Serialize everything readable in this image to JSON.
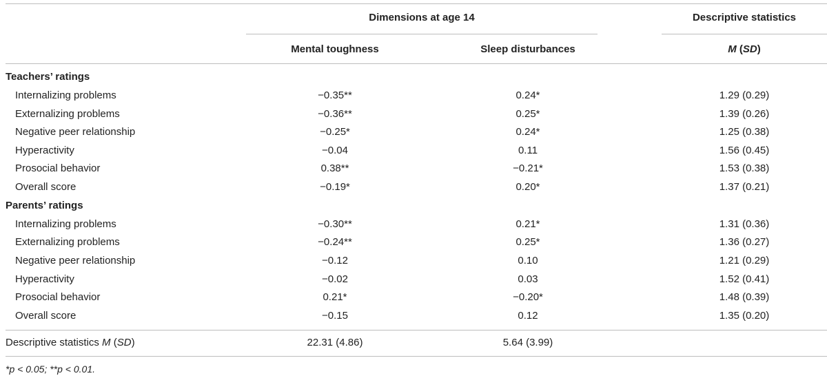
{
  "header": {
    "group_dimensions": "Dimensions at age 14",
    "group_descriptive": "Descriptive statistics",
    "col_mental": "Mental toughness",
    "col_sleep": "Sleep disturbances",
    "col_msd_m": "M",
    "col_msd_sd": "SD"
  },
  "sections": [
    {
      "title": "Teachers’ ratings",
      "rows": [
        {
          "label": "Internalizing problems",
          "mental": "−0.35**",
          "sleep": "0.24*",
          "desc": "1.29 (0.29)"
        },
        {
          "label": "Externalizing problems",
          "mental": "−0.36**",
          "sleep": "0.25*",
          "desc": "1.39 (0.26)"
        },
        {
          "label": "Negative peer relationship",
          "mental": "−0.25*",
          "sleep": "0.24*",
          "desc": "1.25 (0.38)"
        },
        {
          "label": "Hyperactivity",
          "mental": "−0.04",
          "sleep": "0.11",
          "desc": "1.56 (0.45)"
        },
        {
          "label": "Prosocial behavior",
          "mental": "0.38**",
          "sleep": "−0.21*",
          "desc": "1.53 (0.38)"
        },
        {
          "label": "Overall score",
          "mental": "−0.19*",
          "sleep": "0.20*",
          "desc": "1.37 (0.21)"
        }
      ]
    },
    {
      "title": "Parents’ ratings",
      "rows": [
        {
          "label": "Internalizing problems",
          "mental": "−0.30**",
          "sleep": "0.21*",
          "desc": "1.31 (0.36)"
        },
        {
          "label": "Externalizing problems",
          "mental": "−0.24**",
          "sleep": "0.25*",
          "desc": "1.36 (0.27)"
        },
        {
          "label": "Negative peer relationship",
          "mental": "−0.12",
          "sleep": "0.10",
          "desc": "1.21 (0.29)"
        },
        {
          "label": "Hyperactivity",
          "mental": "−0.02",
          "sleep": "0.03",
          "desc": "1.52 (0.41)"
        },
        {
          "label": "Prosocial behavior",
          "mental": "0.21*",
          "sleep": "−0.20*",
          "desc": "1.48 (0.39)"
        },
        {
          "label": "Overall score",
          "mental": "−0.15",
          "sleep": "0.12",
          "desc": "1.35 (0.20)"
        }
      ]
    }
  ],
  "summary": {
    "label_prefix": "Descriptive statistics ",
    "label_m": "M",
    "label_sd": "SD",
    "mental": "22.31 (4.86)",
    "sleep": "5.64 (3.99)"
  },
  "footnote": "*p < 0.05; **p < 0.01."
}
